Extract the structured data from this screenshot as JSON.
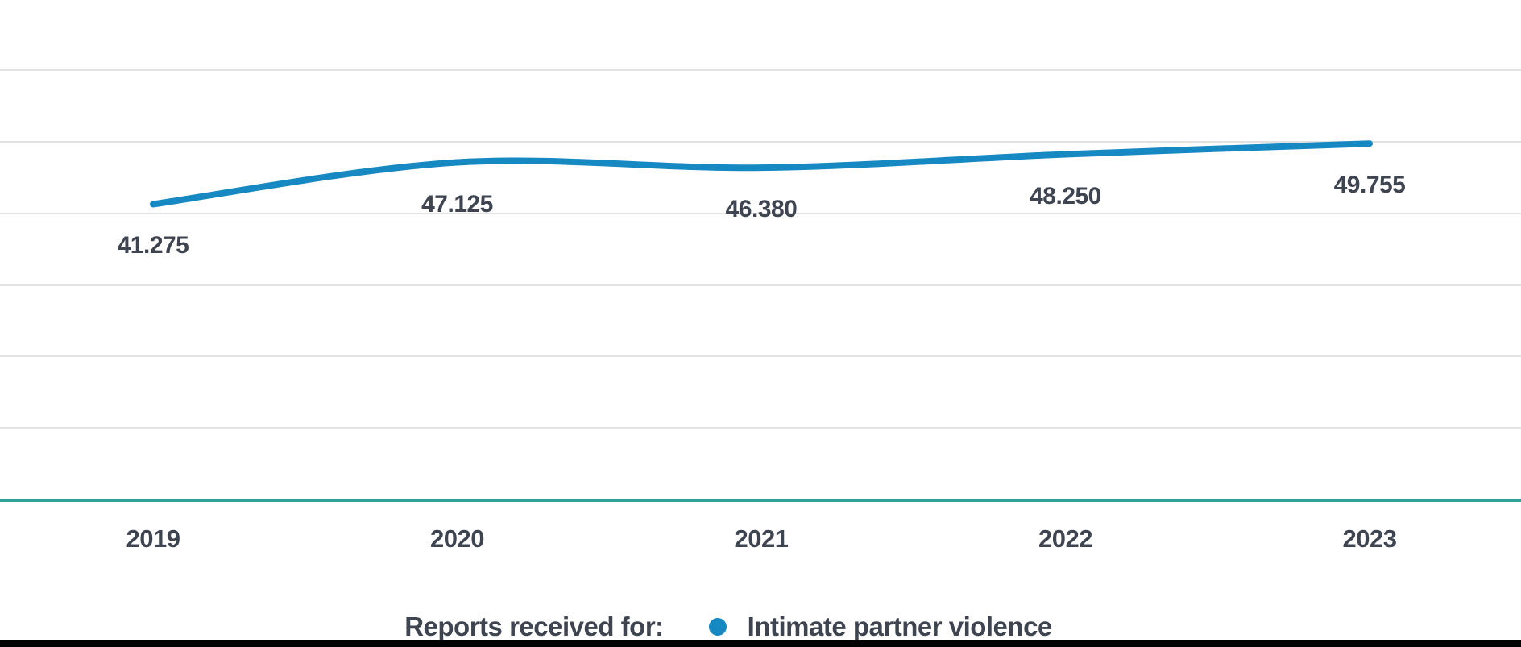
{
  "chart_data": {
    "type": "line",
    "categories": [
      "2019",
      "2020",
      "2021",
      "2022",
      "2023"
    ],
    "series": [
      {
        "name": "Intimate partner violence",
        "values": [
          41275,
          47125,
          46380,
          48250,
          49755
        ],
        "labels": [
          "41.275",
          "47.125",
          "46.380",
          "48.250",
          "49.755"
        ],
        "color": "#1789c2"
      }
    ],
    "title": "",
    "xlabel": "",
    "ylabel": "",
    "ylim": [
      0,
      60000
    ],
    "grid_step": 10000,
    "grid": true,
    "y_axis_labels_visible": false,
    "legend_position": "bottom"
  },
  "legend": {
    "prefix": "Reports received for:",
    "series_label": "Intimate partner violence",
    "marker_color": "#1789c2"
  },
  "colors": {
    "line": "#1789c2",
    "axis_baseline": "#2fa39b",
    "gridline": "#e2e2e2",
    "text": "#3f4550",
    "bottom_bar": "#000000",
    "background": "#ffffff"
  }
}
